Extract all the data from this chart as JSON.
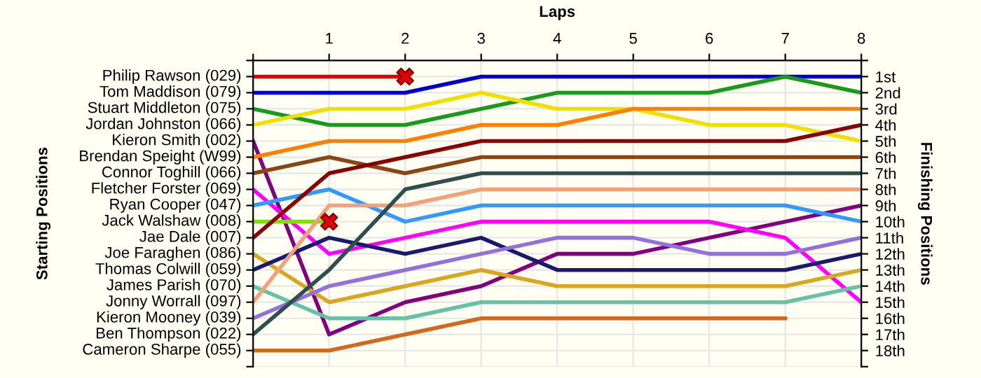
{
  "chart_data": {
    "type": "line",
    "xlabel": "Laps",
    "ylabel": "Finishing Positions",
    "annotations": [
      "Starting Positions"
    ],
    "x": [
      0,
      1,
      2,
      3,
      4,
      5,
      6,
      7,
      8
    ],
    "xlim": [
      0,
      8
    ],
    "xticks": [
      {
        "value": 0,
        "label": null
      },
      1,
      2,
      3,
      4,
      5,
      6,
      7,
      8
    ],
    "ylim": [
      19,
      0
    ],
    "yticks": [
      {
        "value": 0,
        "label": null
      },
      {
        "value": 1,
        "label": "1st"
      },
      {
        "value": 2,
        "label": "2nd"
      },
      {
        "value": 3,
        "label": "3rd"
      },
      {
        "value": 4,
        "label": "4th"
      },
      {
        "value": 5,
        "label": "5th"
      },
      {
        "value": 6,
        "label": "6th"
      },
      {
        "value": 7,
        "label": "7th"
      },
      {
        "value": 8,
        "label": "8th"
      },
      {
        "value": 9,
        "label": "9th"
      },
      {
        "value": 10,
        "label": "10th"
      },
      {
        "value": 11,
        "label": "11th"
      },
      {
        "value": 12,
        "label": "12th"
      },
      {
        "value": 13,
        "label": "13th"
      },
      {
        "value": 14,
        "label": "14th"
      },
      {
        "value": 15,
        "label": "15th"
      },
      {
        "value": 16,
        "label": "16th"
      },
      {
        "value": 17,
        "label": "17th"
      },
      {
        "value": 18,
        "label": "18th"
      },
      {
        "value": 19,
        "label": null
      }
    ],
    "grid": true,
    "marker": "none",
    "line_style": "solid",
    "series": [
      {
        "name": "Philip Rawson (029)",
        "color": "#e00000",
        "values": [
          1,
          1,
          1,
          null,
          null,
          null,
          null,
          null,
          null
        ]
      },
      {
        "name": "Tom Maddison (079)",
        "color": "#0000cc",
        "values": [
          2,
          2,
          2,
          1,
          1,
          1,
          1,
          1,
          1
        ]
      },
      {
        "name": "Stuart Middleton (075)",
        "color": "#1a9a1a",
        "values": [
          3,
          4,
          4,
          3,
          2,
          2,
          2,
          1,
          2
        ]
      },
      {
        "name": "Jordan Johnston (066)",
        "color": "#f0e000",
        "values": [
          4,
          3,
          3,
          2,
          3,
          3,
          4,
          4,
          5
        ]
      },
      {
        "name": "Kieron Smith (002)",
        "color": "#800080",
        "values": [
          5,
          17,
          15,
          14,
          12,
          12,
          11,
          10,
          9
        ]
      },
      {
        "name": "Brendan Speight (W99)",
        "color": "#ff8000",
        "values": [
          6,
          5,
          5,
          4,
          4,
          3,
          3,
          3,
          3
        ]
      },
      {
        "name": "Connor Toghill (066)",
        "color": "#8b4513",
        "values": [
          7,
          6,
          7,
          6,
          6,
          6,
          6,
          6,
          6
        ]
      },
      {
        "name": "Fletcher Forster (069)",
        "color": "#ff00ff",
        "values": [
          8,
          12,
          11,
          10,
          10,
          10,
          10,
          11,
          15
        ]
      },
      {
        "name": "Ryan Cooper (047)",
        "color": "#3399ff",
        "values": [
          9,
          8,
          10,
          9,
          9,
          9,
          9,
          9,
          10
        ]
      },
      {
        "name": "Jack Walshaw (008)",
        "color": "#80e000",
        "values": [
          10,
          10,
          null,
          null,
          null,
          null,
          null,
          null,
          null
        ]
      },
      {
        "name": "Jae Dale (007)",
        "color": "#8b0000",
        "values": [
          11,
          7,
          6,
          5,
          5,
          5,
          5,
          5,
          4
        ]
      },
      {
        "name": "Joe Faraghen (086)",
        "color": "#daa520",
        "values": [
          12,
          15,
          14,
          13,
          14,
          14,
          14,
          14,
          13
        ]
      },
      {
        "name": "Thomas Colwill (059)",
        "color": "#191970",
        "values": [
          13,
          11,
          12,
          11,
          13,
          13,
          13,
          13,
          12
        ]
      },
      {
        "name": "James Parish (070)",
        "color": "#66c2a5",
        "values": [
          14,
          16,
          16,
          15,
          15,
          15,
          15,
          15,
          14
        ]
      },
      {
        "name": "Jonny Worrall (097)",
        "color": "#f4a07a",
        "values": [
          15,
          9,
          9,
          8,
          8,
          8,
          8,
          8,
          8
        ]
      },
      {
        "name": "Kieron Mooney (039)",
        "color": "#9370db",
        "values": [
          16,
          14,
          13,
          12,
          11,
          11,
          12,
          12,
          11
        ]
      },
      {
        "name": "Ben Thompson (022)",
        "color": "#2f4f4f",
        "values": [
          17,
          13,
          8,
          7,
          7,
          7,
          7,
          7,
          7
        ]
      },
      {
        "name": "Cameron Sharpe (055)",
        "color": "#d2691e",
        "values": [
          18,
          18,
          17,
          16,
          16,
          16,
          16,
          16,
          null
        ]
      },
      {
        "type": "scatter",
        "marker": "cross",
        "color": "#e00000",
        "x": [
          2,
          1
        ],
        "values": [
          1,
          10
        ]
      }
    ]
  }
}
